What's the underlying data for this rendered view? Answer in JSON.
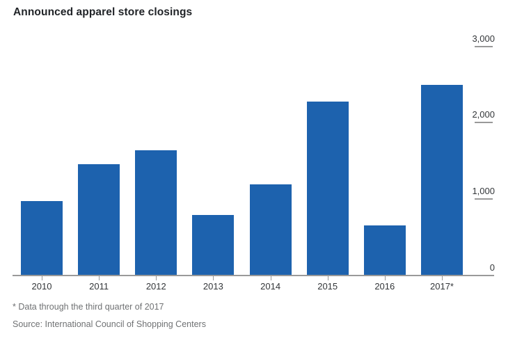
{
  "title": "Announced apparel store closings",
  "footnotes": {
    "asterisk": "* Data through the third quarter of 2017",
    "source": "Source: International Council of Shopping Centers"
  },
  "colors": {
    "bar": "#1d62ae",
    "axis_line": "#999999",
    "tick_mark": "#999999",
    "axis_text": "#333639",
    "title_text": "#212428",
    "footnote_text": "#6f7173",
    "background": "#ffffff"
  },
  "chart_data": {
    "type": "bar",
    "title": "Announced apparel store closings",
    "categories": [
      "2010",
      "2011",
      "2012",
      "2013",
      "2014",
      "2015",
      "2016",
      "2017*"
    ],
    "values": [
      970,
      1460,
      1640,
      790,
      1190,
      2280,
      650,
      2500
    ],
    "xlabel": "",
    "ylabel": "",
    "ylim": [
      0,
      3000
    ],
    "y_ticks": [
      0,
      1000,
      2000,
      3000
    ],
    "y_tick_labels": [
      "0",
      "1,000",
      "2,000",
      "3,000"
    ],
    "y_axis_side": "right",
    "grid": false,
    "legend": false,
    "bar_color": "#1d62ae",
    "footnote": "* Data through the third quarter of 2017",
    "source": "Source: International Council of Shopping Centers"
  }
}
